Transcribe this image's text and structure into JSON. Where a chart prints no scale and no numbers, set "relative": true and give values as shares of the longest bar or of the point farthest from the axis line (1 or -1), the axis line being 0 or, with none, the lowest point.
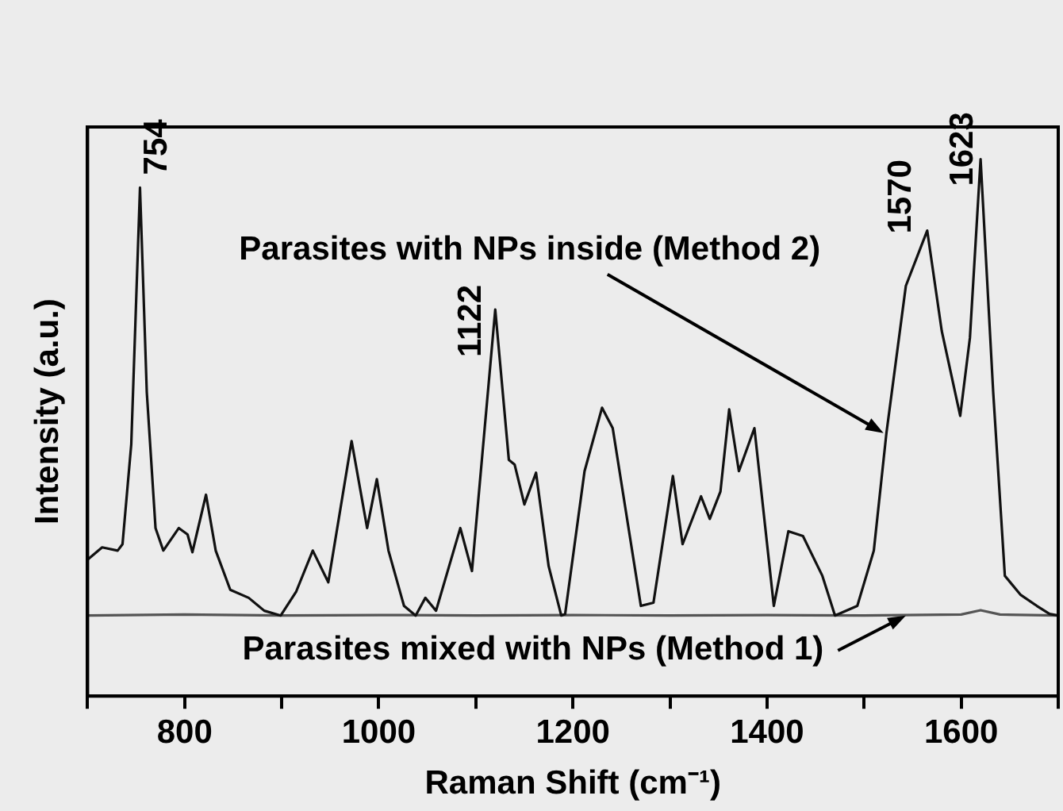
{
  "chart_data": {
    "type": "line",
    "xlabel": "Raman Shift (cm⁻¹)",
    "ylabel": "Intensity (a.u.)",
    "relative": true,
    "xlim": [
      700,
      1700
    ],
    "xticks": [
      {
        "value": 700,
        "label": null
      },
      800,
      {
        "value": 900,
        "label": null
      },
      1000,
      {
        "value": 1100,
        "label": null
      },
      1200,
      {
        "value": 1300,
        "label": null
      },
      1400,
      {
        "value": 1500,
        "label": null
      },
      1600,
      {
        "value": 1700,
        "label": null
      }
    ],
    "grid": false,
    "legend": false,
    "marker": "none",
    "line_style": "solid",
    "series": [
      {
        "color": "#111111",
        "x": [
          700,
          715,
          731,
          736,
          745,
          754,
          761,
          770,
          778,
          794,
          803,
          808,
          822,
          832,
          847,
          866,
          882,
          899,
          915,
          932,
          948,
          972,
          988,
          998,
          1010,
          1026,
          1038,
          1048,
          1059,
          1084,
          1096,
          1120,
          1134,
          1140,
          1150,
          1162,
          1175,
          1188,
          1192,
          1212,
          1230,
          1241,
          1270,
          1283,
          1303,
          1313,
          1332,
          1341,
          1352,
          1361,
          1371,
          1387,
          1407,
          1422,
          1437,
          1457,
          1470,
          1493,
          1510,
          1523,
          1543,
          1565,
          1580,
          1599,
          1609,
          1620,
          1633,
          1645,
          1661,
          1678,
          1691,
          1700
        ],
        "values": [
          0.254,
          0.277,
          0.271,
          0.283,
          0.469,
          0.947,
          0.566,
          0.313,
          0.271,
          0.313,
          0.301,
          0.268,
          0.375,
          0.271,
          0.198,
          0.183,
          0.159,
          0.15,
          0.195,
          0.271,
          0.212,
          0.475,
          0.313,
          0.404,
          0.271,
          0.168,
          0.15,
          0.183,
          0.159,
          0.313,
          0.233,
          0.72,
          0.44,
          0.431,
          0.357,
          0.416,
          0.242,
          0.15,
          0.153,
          0.419,
          0.537,
          0.499,
          0.168,
          0.174,
          0.41,
          0.283,
          0.372,
          0.33,
          0.381,
          0.534,
          0.419,
          0.499,
          0.168,
          0.307,
          0.298,
          0.224,
          0.15,
          0.168,
          0.271,
          0.49,
          0.764,
          0.867,
          0.68,
          0.522,
          0.667,
          1.0,
          0.566,
          0.224,
          0.189,
          0.168,
          0.153,
          0.15
        ]
      },
      {
        "color": "#555555",
        "x": [
          700,
          800,
          900,
          1000,
          1100,
          1200,
          1300,
          1400,
          1500,
          1600,
          1620,
          1640,
          1700
        ],
        "values": [
          0.15,
          0.152,
          0.15,
          0.151,
          0.15,
          0.151,
          0.15,
          0.151,
          0.15,
          0.152,
          0.16,
          0.152,
          0.15
        ]
      }
    ],
    "annotations": [
      {
        "text": "754",
        "x": 754,
        "y": 0.947
      },
      {
        "text": "1122",
        "x": 1120,
        "y": 0.72
      },
      {
        "text": "1570",
        "x": 1565,
        "y": 0.867
      },
      {
        "text": "1623",
        "x": 1620,
        "y": 1.0
      },
      {
        "text": "Parasites with NPs inside (Method 2)",
        "x": 1520,
        "y": 0.49
      },
      {
        "text": "Parasites mixed with NPs (Method 1)",
        "x": 1543,
        "y": 0.15
      }
    ]
  }
}
